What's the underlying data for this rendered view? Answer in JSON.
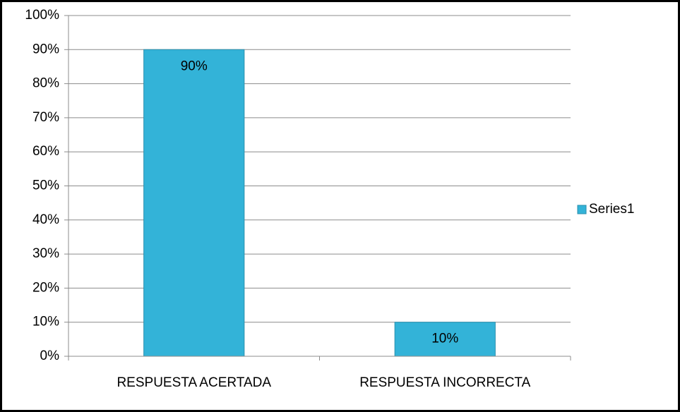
{
  "chart_data": {
    "type": "bar",
    "categories": [
      "RESPUESTA ACERTADA",
      "RESPUESTA INCORRECTA"
    ],
    "series": [
      {
        "name": "Series1",
        "color": "#33b3d8",
        "values": [
          90,
          10
        ],
        "value_labels": [
          "90%",
          "10%"
        ]
      }
    ],
    "ylim": [
      0,
      100
    ],
    "yticks": [
      {
        "value": 0,
        "label": "0%"
      },
      {
        "value": 10,
        "label": "10%"
      },
      {
        "value": 20,
        "label": "20%"
      },
      {
        "value": 30,
        "label": "30%"
      },
      {
        "value": 40,
        "label": "40%"
      },
      {
        "value": 50,
        "label": "50%"
      },
      {
        "value": 60,
        "label": "60%"
      },
      {
        "value": 70,
        "label": "70%"
      },
      {
        "value": 80,
        "label": "80%"
      },
      {
        "value": 90,
        "label": "90%"
      },
      {
        "value": 100,
        "label": "100%"
      }
    ],
    "grid": true,
    "legend": "right"
  }
}
